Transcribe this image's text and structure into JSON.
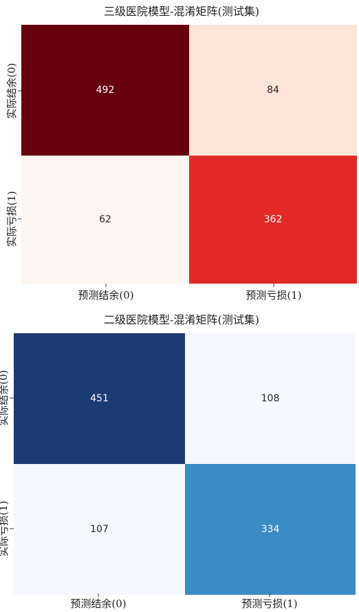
{
  "chart_data": [
    {
      "type": "heatmap",
      "title": "三级医院模型-混淆矩阵(测试集)",
      "x_tick_labels": [
        "预测结余(0)",
        "预测亏损(1)"
      ],
      "y_tick_labels": [
        "实际结余(0)",
        "实际亏损(1)"
      ],
      "values": [
        [
          492,
          84
        ],
        [
          62,
          362
        ]
      ],
      "colormap": "Reds",
      "cell_colors": [
        [
          "#67000d",
          "#fee5d9"
        ],
        [
          "#fff5f0",
          "#e12a27"
        ]
      ],
      "text_colors": [
        [
          "#ffffff",
          "#262626"
        ],
        [
          "#262626",
          "#ffffff"
        ]
      ]
    },
    {
      "type": "heatmap",
      "title": "二级医院模型-混淆矩阵(测试集)",
      "x_tick_labels": [
        "预测结余(0)",
        "预测亏损(1)"
      ],
      "y_tick_labels": [
        "实际结余(0)",
        "实际亏损(1)"
      ],
      "values": [
        [
          451,
          108
        ],
        [
          107,
          334
        ]
      ],
      "colormap": "Blues",
      "cell_colors": [
        [
          "#1c3a74",
          "#f5f9fe"
        ],
        [
          "#f5f9fe",
          "#3b8bc5"
        ]
      ],
      "text_colors": [
        [
          "#ffffff",
          "#262626"
        ],
        [
          "#262626",
          "#ffffff"
        ]
      ]
    }
  ]
}
